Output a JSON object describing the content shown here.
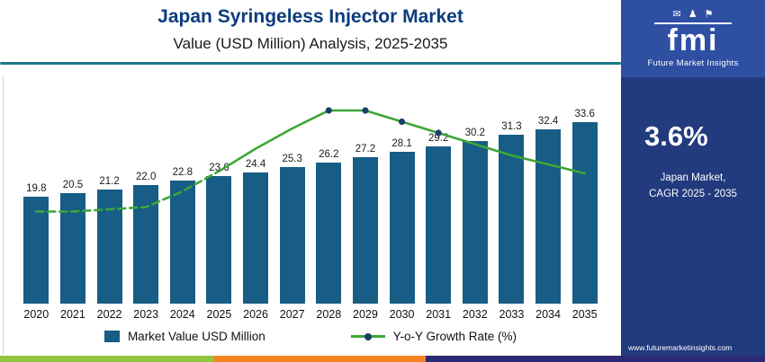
{
  "header": {
    "title": "Japan Syringeless Injector Market",
    "subtitle": "Value (USD Million) Analysis, 2025-2035"
  },
  "chart_data": {
    "type": "bar",
    "title": "Japan Syringeless Injector Market",
    "subtitle": "Value (USD Million) Analysis, 2025-2035",
    "categories": [
      "2020",
      "2021",
      "2022",
      "2023",
      "2024",
      "2025",
      "2026",
      "2027",
      "2028",
      "2029",
      "2030",
      "2031",
      "2032",
      "2033",
      "2034",
      "2035"
    ],
    "series": [
      {
        "name": "Market Value USD Million",
        "type": "bar",
        "values": [
          19.8,
          20.5,
          21.2,
          22.0,
          22.8,
          23.6,
          24.4,
          25.3,
          26.2,
          27.2,
          28.1,
          29.2,
          30.2,
          31.3,
          32.4,
          33.6
        ]
      },
      {
        "name": "Y-o-Y Growth Rate (%)",
        "type": "line",
        "values_norm": [
          0.41,
          0.41,
          0.42,
          0.43,
          0.5,
          0.59,
          0.69,
          0.78,
          0.86,
          0.86,
          0.81,
          0.76,
          0.71,
          0.66,
          0.62,
          0.58
        ],
        "style": {
          "dashed_through_index": 5,
          "marker_indices": [
            8,
            9,
            10,
            11
          ]
        }
      }
    ],
    "legend": [
      "Market Value USD Million",
      "Y-o-Y Growth Rate (%)"
    ],
    "legend_position": "bottom",
    "grid": false,
    "colors": {
      "bar": "#175d85",
      "line": "#3da639",
      "marker": "#173f66"
    }
  },
  "colors": {
    "title": "#0b3c7d",
    "rule": "#1d7a8c",
    "panel": "#223a7e",
    "logo_box": "#2f4fa3",
    "stripe": [
      "#90c53f",
      "#f58220",
      "#2b2a72"
    ]
  },
  "sidebar": {
    "logo": {
      "text": "fmi",
      "caption": "Future Market Insights",
      "icons": [
        {
          "name": "mail-icon",
          "glyph": "✉"
        },
        {
          "name": "person-icon",
          "glyph": "♟"
        },
        {
          "name": "flag-icon",
          "glyph": "⚑"
        }
      ]
    },
    "stat": {
      "value": "3.6%",
      "line1": "Japan Market,",
      "line2": "CAGR 2025 - 2035"
    },
    "website": "www.futuremarketinsights.com"
  }
}
